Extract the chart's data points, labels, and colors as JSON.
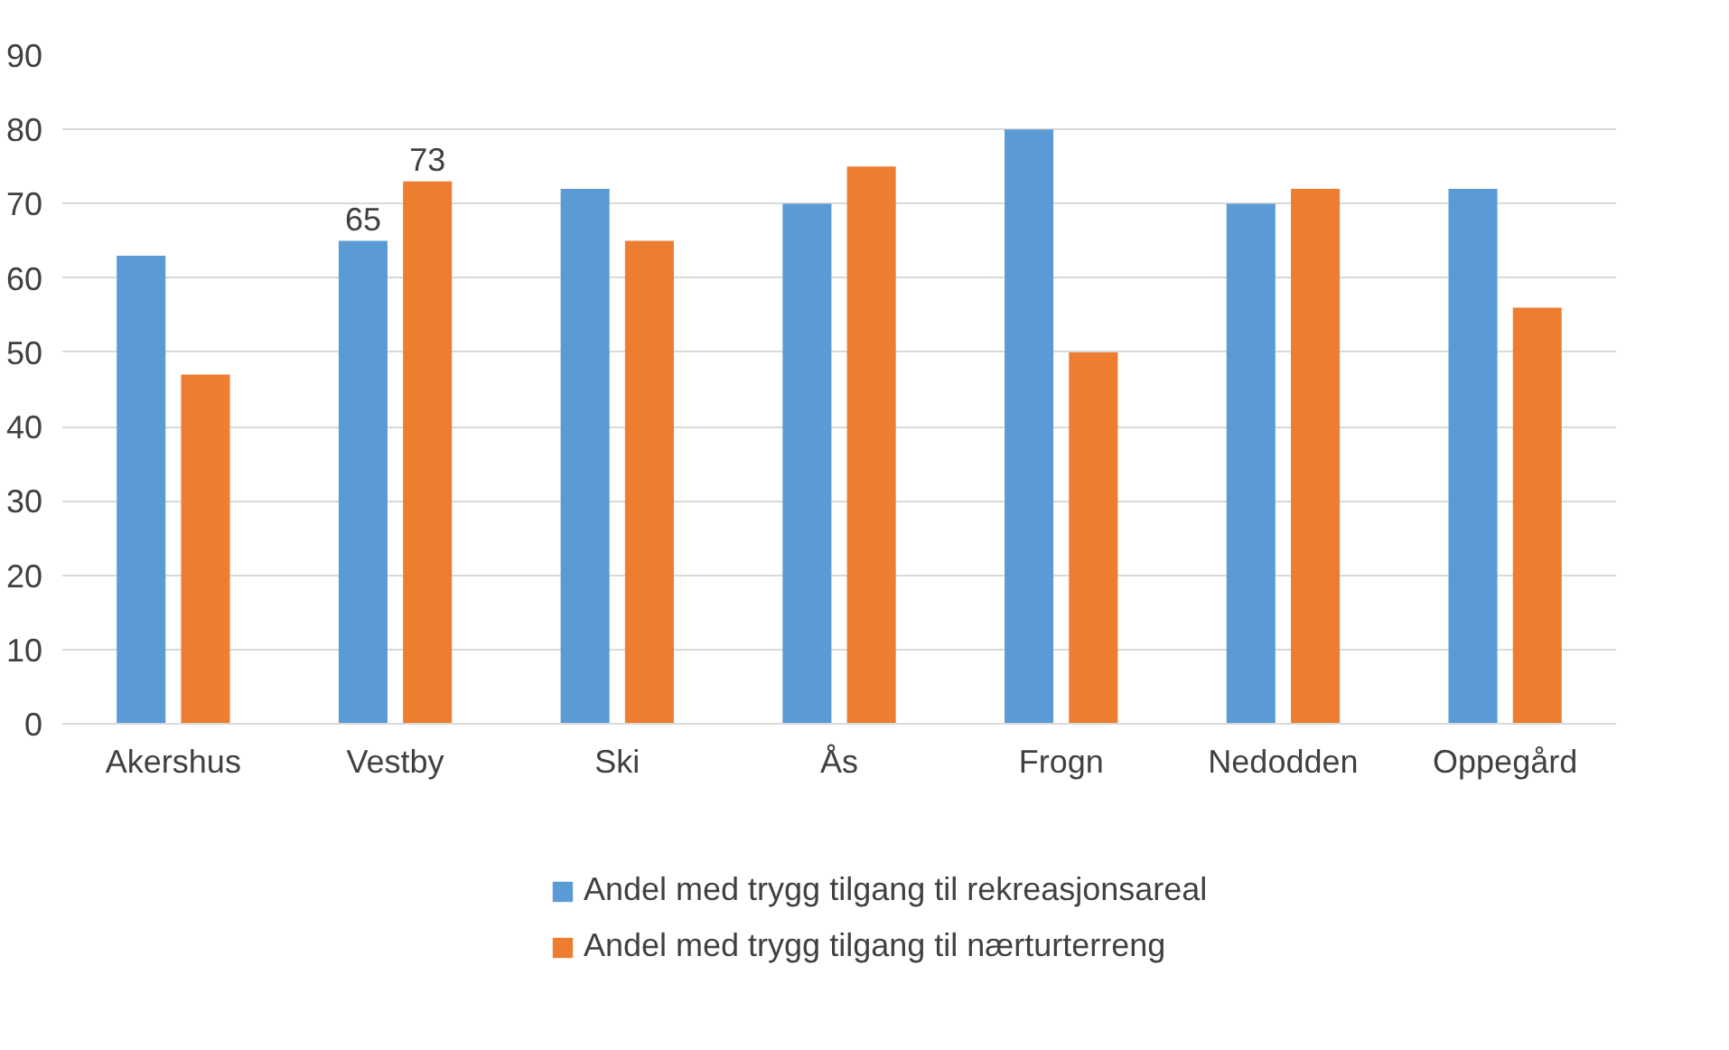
{
  "chart_data": {
    "type": "bar",
    "categories": [
      "Akershus",
      "Vestby",
      "Ski",
      "Ås",
      "Frogn",
      "Nedodden",
      "Oppegård"
    ],
    "series": [
      {
        "name": "Andel med trygg tilgang til rekreasjonsareal",
        "color": "#5b9bd5",
        "values": [
          63,
          65,
          72,
          70,
          80,
          70,
          72
        ],
        "value_labels": [
          null,
          "65",
          null,
          null,
          null,
          null,
          null
        ]
      },
      {
        "name": "Andel med trygg tilgang til nærturterreng",
        "color": "#ed7d31",
        "values": [
          47,
          73,
          65,
          75,
          50,
          72,
          56
        ],
        "value_labels": [
          null,
          "73",
          null,
          null,
          null,
          null,
          null
        ]
      }
    ],
    "ylim": [
      0,
      90
    ],
    "yticks": [
      0,
      10,
      20,
      30,
      40,
      50,
      60,
      70,
      80,
      90
    ],
    "grid": "y",
    "legend": "bottom"
  }
}
